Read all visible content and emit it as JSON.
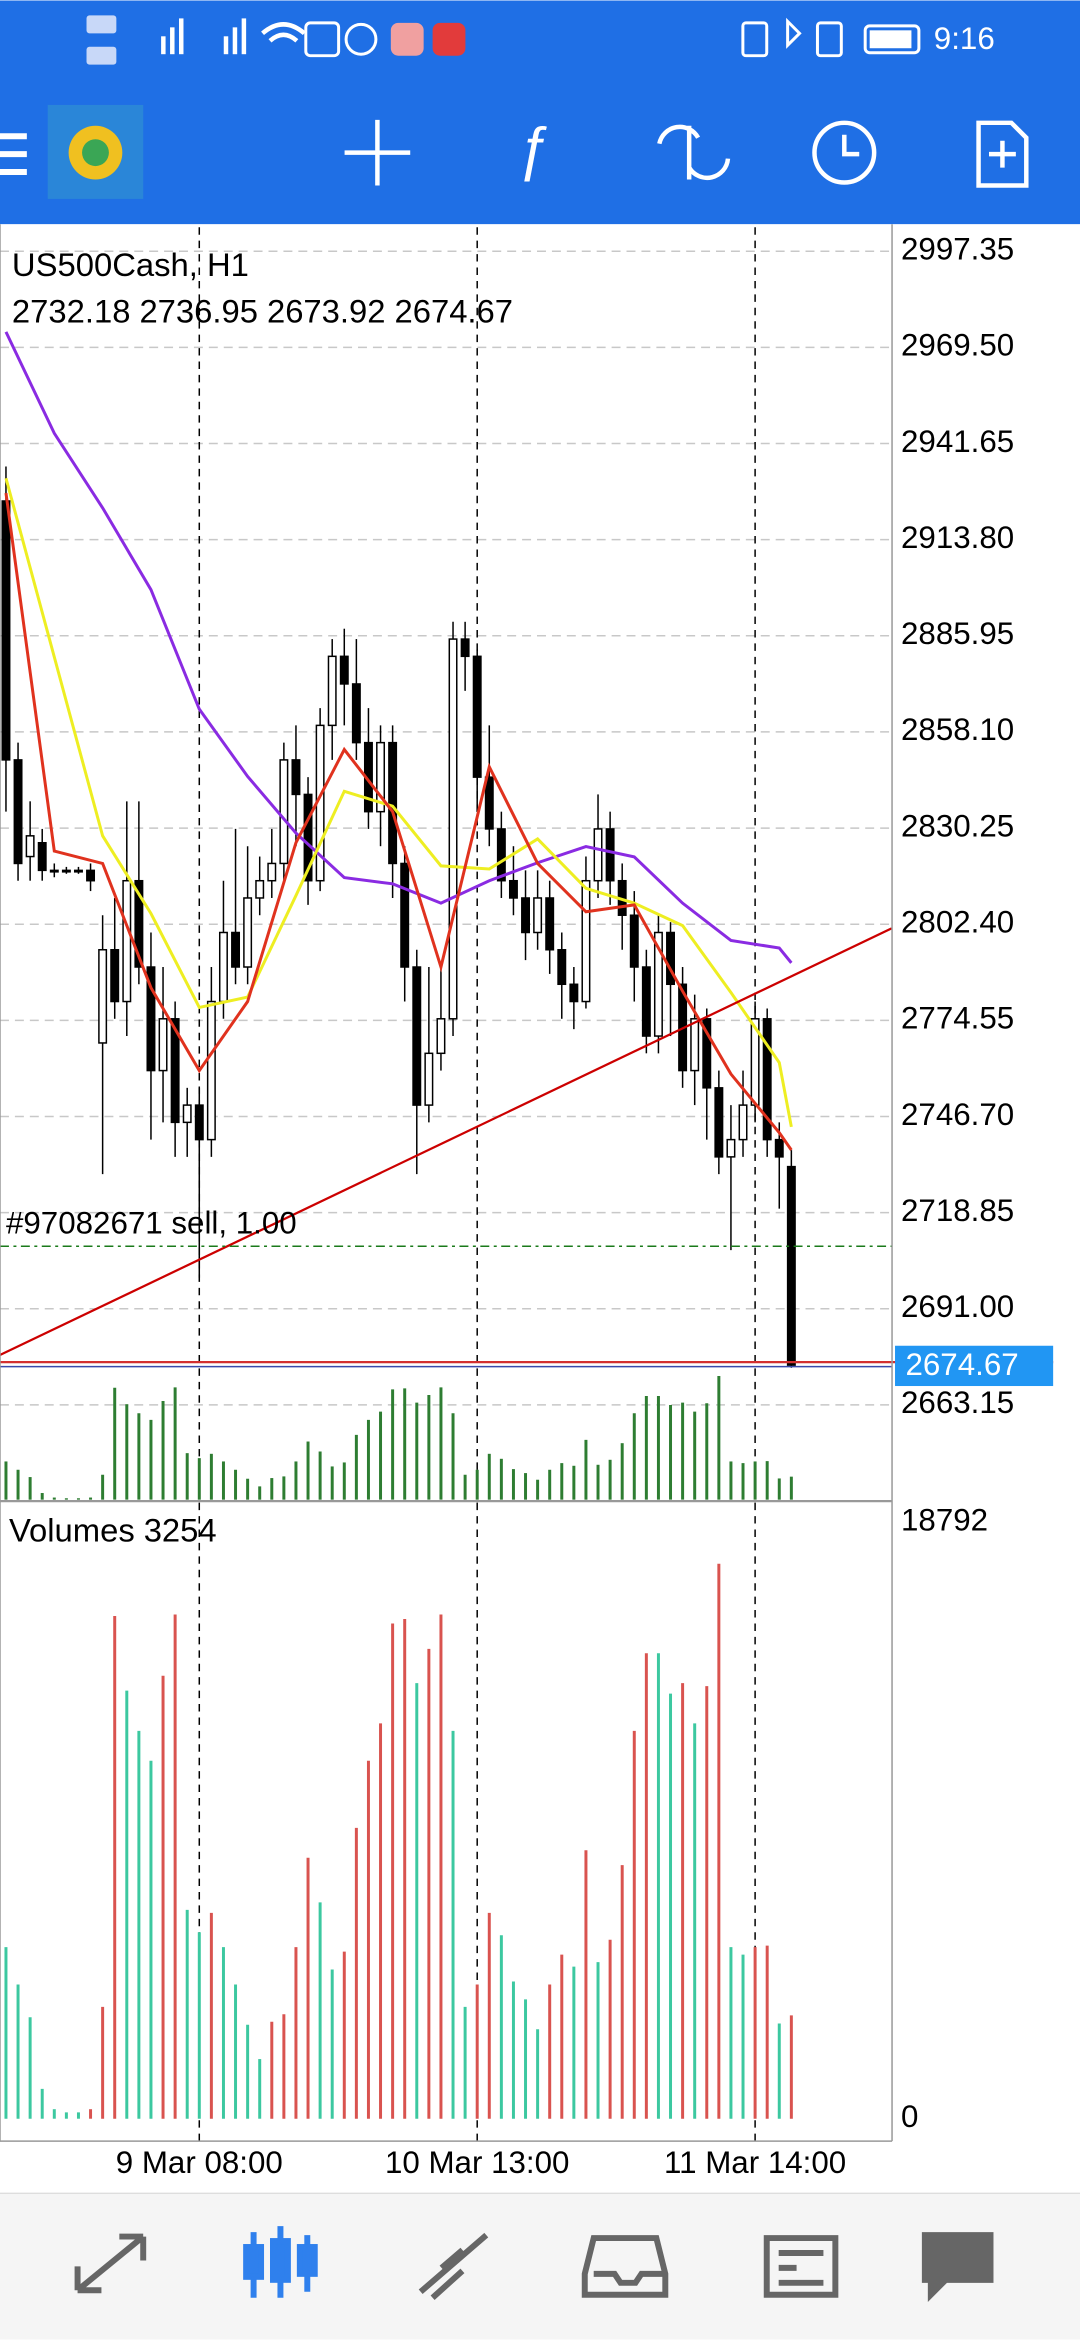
{
  "status_bar": {
    "time": "9:16"
  },
  "chart_data": {
    "type": "candlestick",
    "title": "US500Cash, H1",
    "categories": [
      null,
      null,
      null,
      null,
      null,
      null,
      null,
      null,
      null,
      null,
      null,
      null,
      null,
      null,
      null,
      null,
      "9 Mar 08:00",
      null,
      null,
      null,
      null,
      null,
      null,
      null,
      null,
      null,
      null,
      null,
      null,
      null,
      null,
      null,
      null,
      null,
      null,
      null,
      null,
      null,
      null,
      "10 Mar 13:00",
      null,
      null,
      null,
      null,
      null,
      null,
      null,
      null,
      null,
      null,
      null,
      null,
      null,
      null,
      null,
      null,
      null,
      null,
      null,
      null,
      null,
      null,
      "11 Mar 14:00",
      null,
      null,
      null
    ],
    "open": [
      2925,
      2850,
      2822,
      2826,
      2818,
      2818,
      2818,
      2818,
      2768,
      2795,
      2780,
      2815,
      2790,
      2760,
      2775,
      2745,
      2750,
      2740,
      2780,
      2800,
      2790,
      2810,
      2815,
      2820,
      2850,
      2840,
      2815,
      2860,
      2880,
      2872,
      2855,
      2835,
      2855,
      2820,
      2790,
      2750,
      2765,
      2775,
      2885,
      2880,
      2845,
      2830,
      2815,
      2810,
      2800,
      2810,
      2795,
      2785,
      2780,
      2815,
      2830,
      2815,
      2805,
      2790,
      2770,
      2800,
      2785,
      2760,
      2775,
      2755,
      2735,
      2740,
      2750,
      2775,
      2740,
      2732.18
    ],
    "high": [
      2935,
      2855,
      2838,
      2830,
      2820,
      2819,
      2819,
      2820,
      2805,
      2810,
      2838,
      2838,
      2800,
      2790,
      2780,
      2755,
      2755,
      2790,
      2815,
      2830,
      2825,
      2822,
      2830,
      2855,
      2860,
      2845,
      2865,
      2885,
      2888,
      2885,
      2865,
      2860,
      2860,
      2825,
      2795,
      2790,
      2790,
      2890,
      2890,
      2882,
      2860,
      2835,
      2825,
      2818,
      2818,
      2815,
      2800,
      2790,
      2822,
      2840,
      2835,
      2820,
      2812,
      2795,
      2805,
      2803,
      2790,
      2782,
      2778,
      2760,
      2750,
      2760,
      2780,
      2778,
      2745,
      2736.95
    ],
    "low": [
      2835,
      2815,
      2815,
      2815,
      2816,
      2817,
      2817,
      2812,
      2730,
      2775,
      2770,
      2785,
      2740,
      2745,
      2735,
      2735,
      2700,
      2735,
      2775,
      2785,
      2785,
      2805,
      2810,
      2815,
      2825,
      2808,
      2812,
      2850,
      2860,
      2850,
      2830,
      2825,
      2810,
      2780,
      2730,
      2745,
      2760,
      2770,
      2870,
      2835,
      2825,
      2810,
      2805,
      2792,
      2795,
      2788,
      2775,
      2772,
      2778,
      2810,
      2808,
      2795,
      2780,
      2765,
      2765,
      2770,
      2755,
      2750,
      2740,
      2730,
      2708,
      2735,
      2745,
      2735,
      2720,
      2673.92
    ],
    "close": [
      2850,
      2820,
      2828,
      2818,
      2818,
      2818,
      2818,
      2815,
      2795,
      2780,
      2815,
      2790,
      2760,
      2775,
      2745,
      2750,
      2740,
      2780,
      2800,
      2790,
      2810,
      2815,
      2820,
      2850,
      2840,
      2815,
      2860,
      2880,
      2872,
      2855,
      2835,
      2855,
      2820,
      2790,
      2750,
      2765,
      2775,
      2885,
      2880,
      2845,
      2830,
      2815,
      2810,
      2800,
      2810,
      2795,
      2785,
      2780,
      2815,
      2830,
      2815,
      2805,
      2790,
      2770,
      2800,
      2785,
      2760,
      2775,
      2755,
      2735,
      2740,
      2750,
      2775,
      2740,
      2735,
      2674.67
    ],
    "up_color": "#ffffff",
    "down_color": "#000000",
    "ylim": [
      2635.7,
      3004.3
    ],
    "yticks": [
      2997.35,
      {
        "value": 2969.5,
        "label": "2969.50"
      },
      2941.65,
      {
        "value": 2913.8,
        "label": "2913.80"
      },
      2885.95,
      {
        "value": 2858.1,
        "label": "2858.10"
      },
      2830.25,
      {
        "value": 2802.4,
        "label": "2802.40"
      },
      2774.55,
      {
        "value": 2746.7,
        "label": "2746.70"
      },
      2718.85,
      {
        "value": 2691,
        "label": "2691.00"
      },
      2663.15
    ],
    "grid": true,
    "series": [
      {
        "color": "#8a2be2",
        "x": [
          0,
          4,
          8,
          12,
          16,
          20,
          24,
          28,
          32,
          36,
          40,
          44,
          48,
          52,
          56,
          60,
          64,
          65
        ],
        "values": [
          2974,
          2944.6,
          2923,
          2899.3,
          2864.7,
          2845.2,
          2828.8,
          2815.9,
          2814.1,
          2808.5,
          2815,
          2820.2,
          2824.9,
          2821.9,
          2808.5,
          2797.7,
          2795.5,
          2791.2
        ]
      },
      {
        "color": "#eeee22",
        "x": [
          0,
          4,
          8,
          12,
          16,
          20,
          24,
          28,
          32,
          36,
          40,
          44,
          48,
          52,
          56,
          60,
          64,
          65
        ],
        "values": [
          2931.6,
          2879.8,
          2828,
          2805.5,
          2778.3,
          2781.3,
          2810.7,
          2840.9,
          2836.6,
          2819.3,
          2818.4,
          2827.1,
          2812.8,
          2808.5,
          2802,
          2782.6,
          2762.3,
          2743.7
        ]
      },
      {
        "color": "#e0321e",
        "x": [
          0,
          4,
          8,
          12,
          16,
          20,
          24,
          28,
          32,
          36,
          40,
          44,
          48,
          52,
          56,
          60,
          64,
          65
        ],
        "values": [
          2927.3,
          2823.6,
          2820,
          2784,
          2760,
          2780,
          2826,
          2853,
          2835,
          2790,
          2848,
          2820,
          2806,
          2808,
          2783,
          2759,
          2742,
          2737
        ]
      }
    ],
    "trendline": {
      "color": "#cc0000",
      "x": [
        -0.5,
        73.3
      ],
      "values": [
        2677.6,
        2801.2
      ]
    },
    "order": {
      "label": "#97082671 sell, 1.00",
      "price": 2709.1,
      "color": "#1a7a1a"
    },
    "price_line_color": "#d32f2f",
    "price_label_color": "#2196f3",
    "volumes": {
      "label": "Volumes",
      "values": [
        5403,
        4228,
        3195,
        940,
        300,
        200,
        200,
        300,
        3524,
        15832,
        13483,
        12215,
        11275,
        13953,
        15879,
        6577,
        5872,
        6483,
        5403,
        4228,
        2960,
        1879,
        3054,
        3289,
        5403,
        8221,
        6812,
        4698,
        5262,
        9161,
        11275,
        12450,
        15597,
        15738,
        13718,
        14799,
        15879,
        12215,
        3524,
        4228,
        6483,
        5778,
        4322,
        3758,
        2819,
        4228,
        5168,
        4792,
        8456,
        4933,
        5638,
        7986,
        12215,
        14658,
        14658,
        13389,
        13718,
        12450,
        13624,
        17477,
        5403,
        5168,
        5403,
        5450,
        3000,
        3254
      ],
      "ylim": [
        -705,
        19403
      ],
      "yticks": [
        18792,
        0
      ],
      "up_color": "#d9534f",
      "down_color": "#3cc8a0",
      "overlay_color": "#2e7d32"
    }
  }
}
